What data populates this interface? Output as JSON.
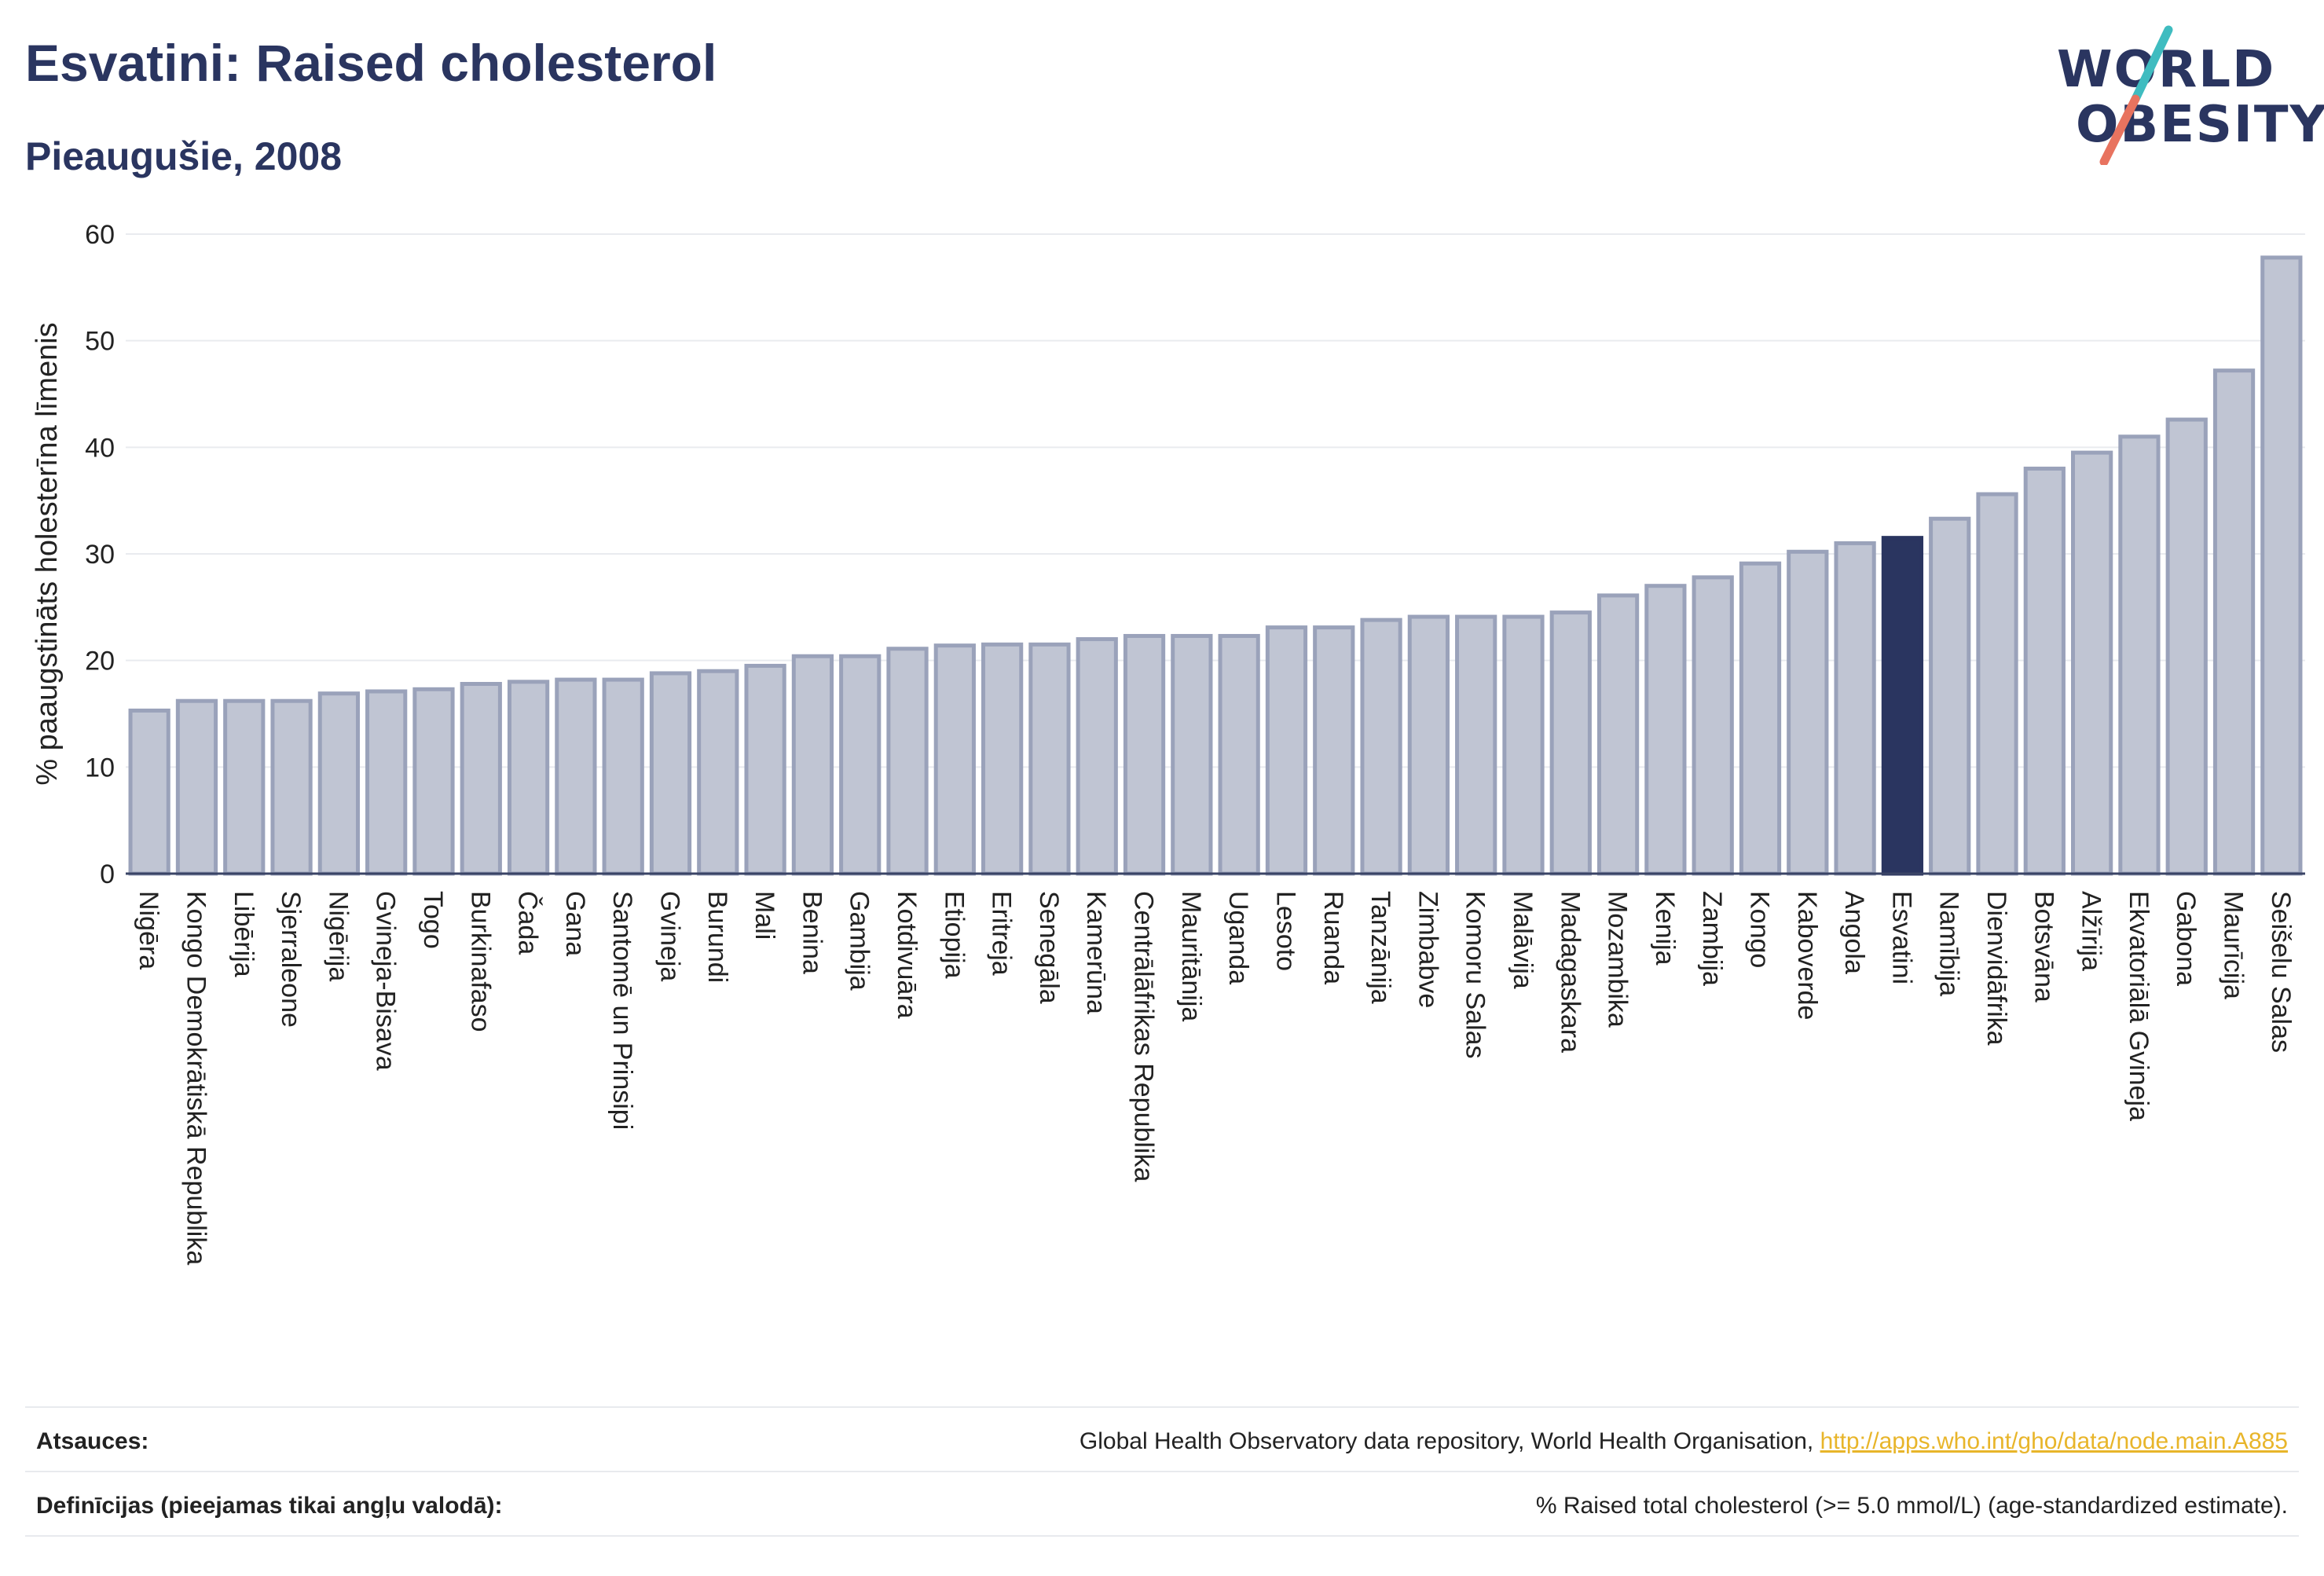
{
  "header": {
    "title": "Esvatini: Raised cholesterol",
    "subtitle": "Pieaugušie, 2008"
  },
  "logo": {
    "line1": "WORLD",
    "line2": "OBESITY",
    "colors": {
      "text": "#2a3560",
      "slash_top": "#3fbcc0",
      "slash_bottom": "#e8735f"
    }
  },
  "chart_data": {
    "type": "bar",
    "title": "",
    "xlabel": "",
    "ylabel": "% paaugstināts holesterīna līmenis",
    "ylim": [
      0,
      60
    ],
    "yticks": [
      0,
      10,
      20,
      30,
      40,
      50,
      60
    ],
    "grid": true,
    "highlight": "Esvatini",
    "colors": {
      "bar": "#c0c5d3",
      "bar_edge": "#9aa2ba",
      "highlight": "#2a3560",
      "grid": "#e9ebef"
    },
    "categories": [
      "Nigēra",
      "Kongo Demokrātiskā Republika",
      "Libērija",
      "Sjerraleone",
      "Nigērija",
      "Gvineja-Bisava",
      "Togo",
      "Burkinafaso",
      "Čada",
      "Gana",
      "Santomē un Prinsipi",
      "Gvineja",
      "Burundi",
      "Mali",
      "Benina",
      "Gambija",
      "Kotdivuāra",
      "Etiopija",
      "Eritreja",
      "Senegāla",
      "Kamerūna",
      "Centrālāfrikas Republika",
      "Mauritānija",
      "Uganda",
      "Lesoto",
      "Ruanda",
      "Tanzānija",
      "Zimbabve",
      "Komoru Salas",
      "Malāvija",
      "Madagaskara",
      "Mozambika",
      "Kenija",
      "Zambija",
      "Kongo",
      "Kaboverde",
      "Angola",
      "Esvatini",
      "Namībija",
      "Dienvidāfrika",
      "Botsvāna",
      "Alžīrija",
      "Ekvatoriālā Gvineja",
      "Gabona",
      "Maurīcija",
      "Seišelu Salas"
    ],
    "values": [
      15.3,
      16.2,
      16.2,
      16.2,
      16.9,
      17.1,
      17.3,
      17.8,
      18.0,
      18.2,
      18.2,
      18.8,
      19.0,
      19.5,
      20.4,
      20.4,
      21.1,
      21.4,
      21.5,
      21.5,
      22.0,
      22.3,
      22.3,
      22.3,
      23.1,
      23.1,
      23.8,
      24.1,
      24.1,
      24.1,
      24.5,
      26.1,
      27.0,
      27.8,
      29.1,
      30.2,
      31.0,
      31.5,
      33.3,
      35.6,
      38.0,
      39.5,
      41.0,
      42.6,
      47.2,
      57.8
    ]
  },
  "footer": {
    "sources_label": "Atsauces:",
    "sources_text": "Global Health Observatory data repository, World Health Organisation, ",
    "sources_link": "http://apps.who.int/gho/data/node.main.A885",
    "definitions_label": "Definīcijas (pieejamas tikai angļu valodā):",
    "definitions_text": "% Raised total cholesterol (>= 5.0 mmol/L) (age-standardized estimate)."
  }
}
